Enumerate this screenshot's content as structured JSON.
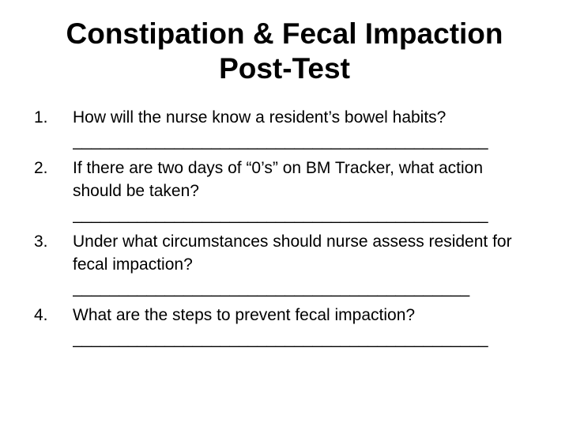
{
  "slide": {
    "title_line1": "Constipation & Fecal Impaction",
    "title_line2": "Post-Test",
    "questions": [
      {
        "number": "1.",
        "text": "How will the nurse know a resident’s bowel habits?",
        "blank": "_____________________________________________"
      },
      {
        "number": "2.",
        "text": "If there are two days of “0’s” on BM Tracker, what action should be taken?",
        "blank": "_____________________________________________"
      },
      {
        "number": "3.",
        "text": "Under what circumstances should nurse assess resident for fecal impaction?",
        "blank": "___________________________________________"
      },
      {
        "number": "4.",
        "text": "What are the steps to prevent fecal impaction?",
        "blank": "_____________________________________________"
      }
    ]
  },
  "colors": {
    "background": "#ffffff",
    "text": "#000000"
  }
}
